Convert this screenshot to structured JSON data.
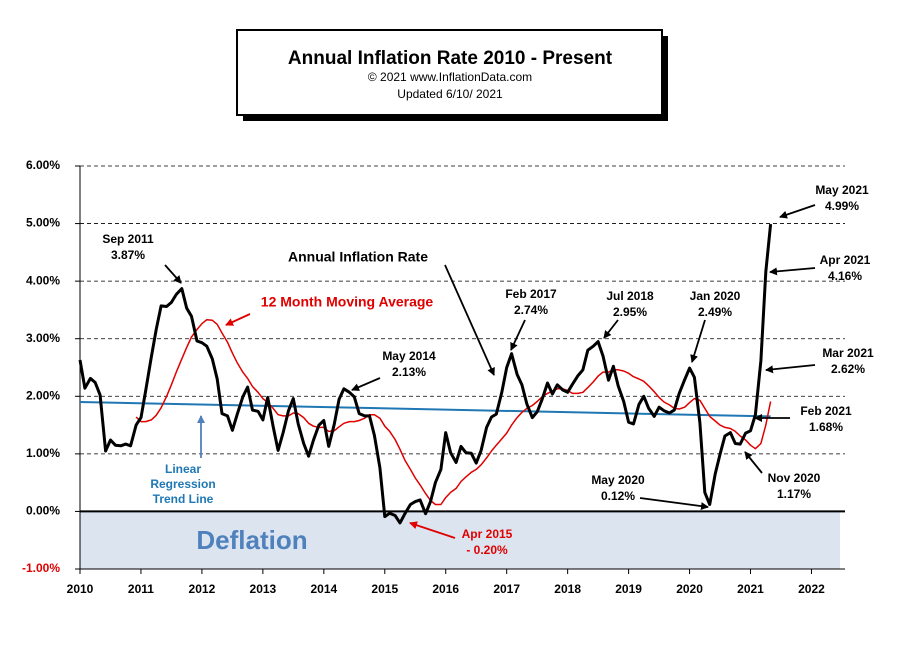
{
  "chart_data": {
    "type": "line",
    "title": "Annual  Inflation  Rate 2010 - Present",
    "subtitle": [
      "© 2021  www.InflationData.com",
      "Updated  6/10/ 2021"
    ],
    "region_label": "Deflation",
    "x": [
      2010.0,
      2010.08,
      2010.17,
      2010.25,
      2010.33,
      2010.42,
      2010.5,
      2010.58,
      2010.67,
      2010.75,
      2010.83,
      2010.92,
      2011.0,
      2011.08,
      2011.17,
      2011.25,
      2011.33,
      2011.42,
      2011.5,
      2011.58,
      2011.67,
      2011.75,
      2011.83,
      2011.92,
      2012.0,
      2012.08,
      2012.17,
      2012.25,
      2012.33,
      2012.42,
      2012.5,
      2012.58,
      2012.67,
      2012.75,
      2012.83,
      2012.92,
      2013.0,
      2013.08,
      2013.17,
      2013.25,
      2013.33,
      2013.42,
      2013.5,
      2013.58,
      2013.67,
      2013.75,
      2013.83,
      2013.92,
      2014.0,
      2014.08,
      2014.17,
      2014.25,
      2014.33,
      2014.42,
      2014.5,
      2014.58,
      2014.67,
      2014.75,
      2014.83,
      2014.92,
      2015.0,
      2015.08,
      2015.17,
      2015.25,
      2015.33,
      2015.42,
      2015.5,
      2015.58,
      2015.67,
      2015.75,
      2015.83,
      2015.92,
      2016.0,
      2016.08,
      2016.17,
      2016.25,
      2016.33,
      2016.42,
      2016.5,
      2016.58,
      2016.67,
      2016.75,
      2016.83,
      2016.92,
      2017.0,
      2017.08,
      2017.17,
      2017.25,
      2017.33,
      2017.42,
      2017.5,
      2017.58,
      2017.67,
      2017.75,
      2017.83,
      2017.92,
      2018.0,
      2018.08,
      2018.17,
      2018.25,
      2018.33,
      2018.42,
      2018.5,
      2018.58,
      2018.67,
      2018.75,
      2018.83,
      2018.92,
      2019.0,
      2019.08,
      2019.17,
      2019.25,
      2019.33,
      2019.42,
      2019.5,
      2019.58,
      2019.67,
      2019.75,
      2019.83,
      2019.92,
      2020.0,
      2020.08,
      2020.17,
      2020.25,
      2020.33,
      2020.42,
      2020.5,
      2020.58,
      2020.67,
      2020.75,
      2020.83,
      2020.92,
      2021.0,
      2021.08,
      2021.17,
      2021.25,
      2021.33
    ],
    "series": [
      {
        "name": "Annual Inflation Rate",
        "color": "#000000",
        "width": 3,
        "values": [
          2.63,
          2.14,
          2.31,
          2.24,
          2.02,
          1.05,
          1.24,
          1.15,
          1.14,
          1.17,
          1.14,
          1.5,
          1.63,
          2.11,
          2.68,
          3.16,
          3.57,
          3.56,
          3.63,
          3.77,
          3.87,
          3.53,
          3.39,
          2.96,
          2.93,
          2.87,
          2.65,
          2.3,
          1.7,
          1.66,
          1.41,
          1.69,
          1.99,
          2.16,
          1.76,
          1.74,
          1.59,
          1.98,
          1.47,
          1.06,
          1.36,
          1.75,
          1.96,
          1.52,
          1.18,
          0.96,
          1.24,
          1.5,
          1.58,
          1.13,
          1.51,
          1.95,
          2.13,
          2.07,
          1.99,
          1.7,
          1.66,
          1.66,
          1.32,
          0.76,
          -0.09,
          -0.03,
          -0.07,
          -0.2,
          -0.04,
          0.12,
          0.17,
          0.2,
          -0.04,
          0.17,
          0.5,
          0.73,
          1.37,
          1.02,
          0.85,
          1.13,
          1.02,
          1.01,
          0.84,
          1.06,
          1.46,
          1.64,
          1.69,
          2.07,
          2.5,
          2.74,
          2.38,
          2.2,
          1.87,
          1.63,
          1.73,
          1.94,
          2.23,
          2.04,
          2.2,
          2.11,
          2.07,
          2.21,
          2.36,
          2.46,
          2.8,
          2.87,
          2.95,
          2.7,
          2.28,
          2.52,
          2.18,
          1.91,
          1.55,
          1.52,
          1.86,
          2.0,
          1.79,
          1.65,
          1.81,
          1.75,
          1.71,
          1.76,
          2.05,
          2.29,
          2.49,
          2.33,
          1.54,
          0.33,
          0.12,
          0.65,
          0.99,
          1.31,
          1.37,
          1.18,
          1.17,
          1.36,
          1.4,
          1.68,
          2.62,
          4.16,
          4.99
        ]
      },
      {
        "name": "12 Month Moving Average",
        "color": "#e00000",
        "width": 1.5,
        "values": [
          null,
          null,
          null,
          null,
          null,
          null,
          null,
          null,
          null,
          null,
          null,
          1.64,
          1.56,
          1.56,
          1.59,
          1.67,
          1.8,
          2.0,
          2.2,
          2.42,
          2.65,
          2.85,
          3.03,
          3.16,
          3.26,
          3.33,
          3.32,
          3.25,
          3.1,
          2.94,
          2.75,
          2.58,
          2.42,
          2.31,
          2.17,
          2.07,
          1.96,
          1.89,
          1.79,
          1.68,
          1.66,
          1.66,
          1.71,
          1.7,
          1.63,
          1.53,
          1.48,
          1.46,
          1.46,
          1.39,
          1.4,
          1.47,
          1.53,
          1.56,
          1.56,
          1.58,
          1.62,
          1.68,
          1.68,
          1.62,
          1.48,
          1.39,
          1.25,
          1.08,
          0.89,
          0.73,
          0.58,
          0.46,
          0.31,
          0.19,
          0.12,
          0.12,
          0.24,
          0.33,
          0.4,
          0.52,
          0.6,
          0.68,
          0.73,
          0.81,
          0.93,
          1.05,
          1.15,
          1.26,
          1.36,
          1.5,
          1.63,
          1.72,
          1.79,
          1.84,
          1.91,
          1.99,
          2.05,
          2.09,
          2.13,
          2.13,
          2.1,
          2.05,
          2.05,
          2.07,
          2.15,
          2.25,
          2.35,
          2.42,
          2.42,
          2.46,
          2.46,
          2.44,
          2.4,
          2.34,
          2.3,
          2.26,
          2.18,
          2.08,
          1.98,
          1.9,
          1.85,
          1.79,
          1.78,
          1.81,
          1.89,
          1.96,
          1.93,
          1.79,
          1.65,
          1.57,
          1.5,
          1.46,
          1.44,
          1.39,
          1.31,
          1.24,
          1.15,
          1.09,
          1.18,
          1.5,
          1.91
        ]
      },
      {
        "name": "Linear Regression Trend Line",
        "color": "#1f77b4",
        "width": 2,
        "x": [
          2010.0,
          2021.33
        ],
        "values": [
          1.9,
          1.65
        ]
      }
    ],
    "annotations": [
      {
        "lines": [
          "Sep 2011",
          "3.87%"
        ],
        "color": "#000000"
      },
      {
        "lines": [
          "May 2014",
          "2.13%"
        ],
        "color": "#000000"
      },
      {
        "lines": [
          "Apr 2015",
          "- 0.20%"
        ],
        "color": "#e00000"
      },
      {
        "lines": [
          "Feb 2017",
          "2.74%"
        ],
        "color": "#000000"
      },
      {
        "lines": [
          "Jul 2018",
          "2.95%"
        ],
        "color": "#000000"
      },
      {
        "lines": [
          "Jan 2020",
          "2.49%"
        ],
        "color": "#000000"
      },
      {
        "lines": [
          "May 2020",
          "0.12%"
        ],
        "color": "#000000"
      },
      {
        "lines": [
          "Nov 2020",
          "1.17%"
        ],
        "color": "#000000"
      },
      {
        "lines": [
          "Feb 2021",
          "1.68%"
        ],
        "color": "#000000"
      },
      {
        "lines": [
          "Mar 2021",
          "2.62%"
        ],
        "color": "#000000"
      },
      {
        "lines": [
          "Apr 2021",
          "4.16%"
        ],
        "color": "#000000"
      },
      {
        "lines": [
          "May 2021",
          "4.99%"
        ],
        "color": "#000000"
      }
    ],
    "xlim": [
      2010,
      2022.55
    ],
    "xticks": [
      2010,
      2011,
      2012,
      2013,
      2014,
      2015,
      2016,
      2017,
      2018,
      2019,
      2020,
      2021,
      2022
    ],
    "ylim": [
      -1,
      6
    ],
    "yticks": [
      {
        "value": -1,
        "label": "-1.00%"
      },
      {
        "value": 0,
        "label": "0.00%"
      },
      {
        "value": 1,
        "label": "1.00%"
      },
      {
        "value": 2,
        "label": "2.00%"
      },
      {
        "value": 3,
        "label": "3.00%"
      },
      {
        "value": 4,
        "label": "4.00%"
      },
      {
        "value": 5,
        "label": "5.00%"
      },
      {
        "value": 6,
        "label": "6.00%"
      }
    ],
    "grid": true,
    "region_color": "#dce4f0"
  }
}
